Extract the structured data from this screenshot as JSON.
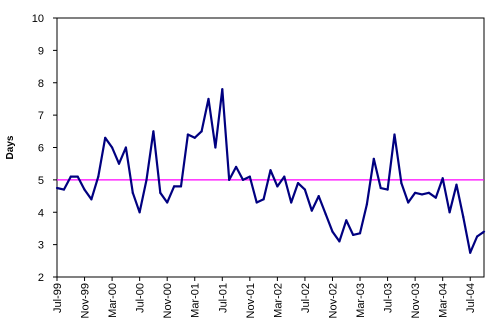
{
  "chart_data": {
    "type": "line",
    "title": "",
    "xlabel": "",
    "ylabel": "Days",
    "ylim": [
      2,
      10
    ],
    "yticks": [
      2,
      3,
      4,
      5,
      6,
      7,
      8,
      9,
      10
    ],
    "grid": false,
    "legend": "none",
    "x_tick_labels": [
      "Jul-99",
      "Nov-99",
      "Mar-00",
      "Jul-00",
      "Nov-00",
      "Mar-01",
      "Jul-01",
      "Nov-01",
      "Mar-02",
      "Jul-02",
      "Nov-02",
      "Mar-03",
      "Jul-03",
      "Nov-03",
      "Mar-04",
      "Jul-04"
    ],
    "series": [
      {
        "color": "#000080",
        "values": [
          4.75,
          4.7,
          5.1,
          5.1,
          4.7,
          4.4,
          5.1,
          6.3,
          6.0,
          5.5,
          6.0,
          4.6,
          4.0,
          5.0,
          6.5,
          4.6,
          4.3,
          4.8,
          4.8,
          6.4,
          6.3,
          6.5,
          7.5,
          6.0,
          7.8,
          5.0,
          5.4,
          5.0,
          5.1,
          4.3,
          4.4,
          5.3,
          4.8,
          5.1,
          4.3,
          4.9,
          4.7,
          4.05,
          4.5,
          3.95,
          3.4,
          3.1,
          3.75,
          3.3,
          3.35,
          4.25,
          5.65,
          4.75,
          4.7,
          6.4,
          4.9,
          4.3,
          4.6,
          4.55,
          4.6,
          4.45,
          5.05,
          4.0,
          4.85,
          3.85,
          2.75,
          3.25,
          3.4
        ]
      },
      {
        "color": "#FF00FF",
        "values": [
          5.0,
          5.0
        ]
      }
    ],
    "reference_line": {
      "value": 5.0,
      "color": "#FF00FF"
    }
  },
  "colors": {
    "plot_border": "#000000",
    "background": "#ffffff"
  }
}
